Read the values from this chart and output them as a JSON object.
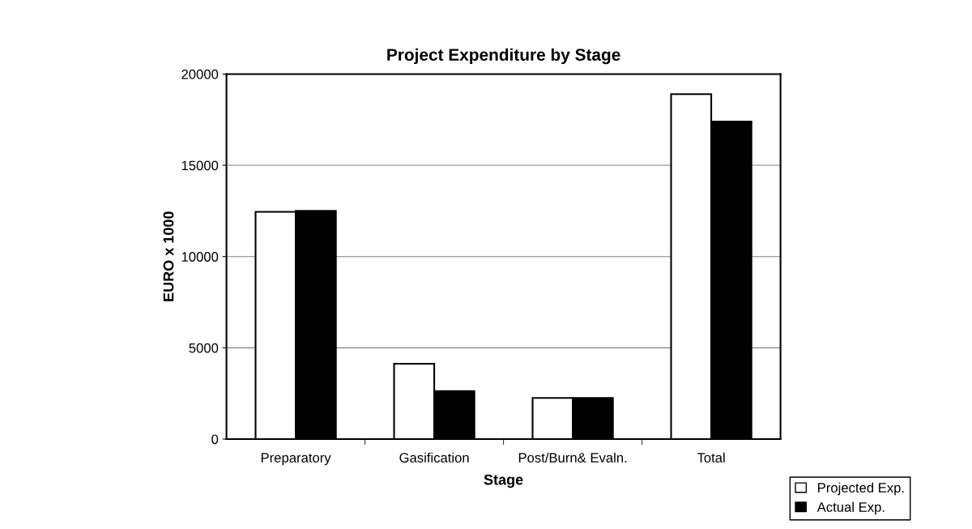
{
  "chart_data": {
    "type": "bar",
    "title": "Project Expenditure by Stage",
    "xlabel": "Stage",
    "ylabel": "EURO x 1000",
    "categories": [
      "Preparatory",
      "Gasification",
      "Post/Burn& Evaln.",
      "Total"
    ],
    "series": [
      {
        "name": "Projected Exp.",
        "color": "#ffffff",
        "values": [
          12450,
          4130,
          2250,
          18900
        ]
      },
      {
        "name": "Actual Exp.",
        "color": "#000000",
        "values": [
          12500,
          2630,
          2250,
          17400
        ]
      }
    ],
    "ylim": [
      0,
      20000
    ],
    "yticks": [
      0,
      5000,
      10000,
      15000,
      20000
    ],
    "grid": "y",
    "legend": "bottom right"
  }
}
